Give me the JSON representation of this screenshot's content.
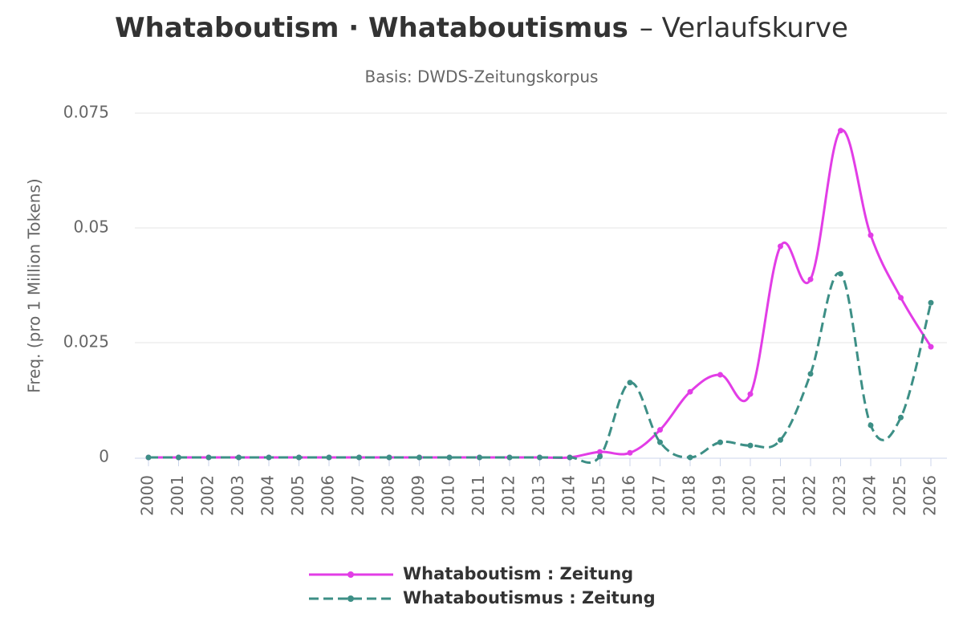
{
  "chart_data": {
    "type": "line",
    "title_bold": "Whataboutism · Whataboutismus",
    "title_rest": "– Verlaufskurve",
    "subtitle": "Basis: DWDS-Zeitungskorpus",
    "y_label": "Freq. (pro 1 Million Tokens)",
    "categories": [
      "2000",
      "2001",
      "2002",
      "2003",
      "2004",
      "2005",
      "2006",
      "2007",
      "2008",
      "2009",
      "2010",
      "2011",
      "2012",
      "2013",
      "2014",
      "2015",
      "2016",
      "2017",
      "2018",
      "2019",
      "2020",
      "2021",
      "2022",
      "2023",
      "2024",
      "2025",
      "2026"
    ],
    "series": [
      {
        "name": "Whataboutism : Zeitung",
        "color": "#e23de6",
        "dash": false,
        "values": [
          0,
          0,
          0,
          0,
          0,
          0,
          0,
          0,
          0,
          0,
          0,
          0,
          0,
          0,
          0,
          0.0012,
          0.001,
          0.006,
          0.0143,
          0.018,
          0.0138,
          0.046,
          0.0388,
          0.0712,
          0.0484,
          0.0348,
          0.0241
        ]
      },
      {
        "name": "Whataboutismus : Zeitung",
        "color": "#3d8f86",
        "dash": true,
        "values": [
          0,
          0,
          0,
          0,
          0,
          0,
          0,
          0,
          0,
          0,
          0,
          0,
          0,
          0,
          0,
          0.0002,
          0.0163,
          0.0033,
          0,
          0.0033,
          0.0026,
          0.0038,
          0.0182,
          0.04,
          0.007,
          0.0087,
          0.0337
        ]
      }
    ],
    "ylim": [
      0,
      0.075
    ],
    "yticks": [
      0,
      0.025,
      0.05,
      0.075
    ],
    "grid": true
  }
}
